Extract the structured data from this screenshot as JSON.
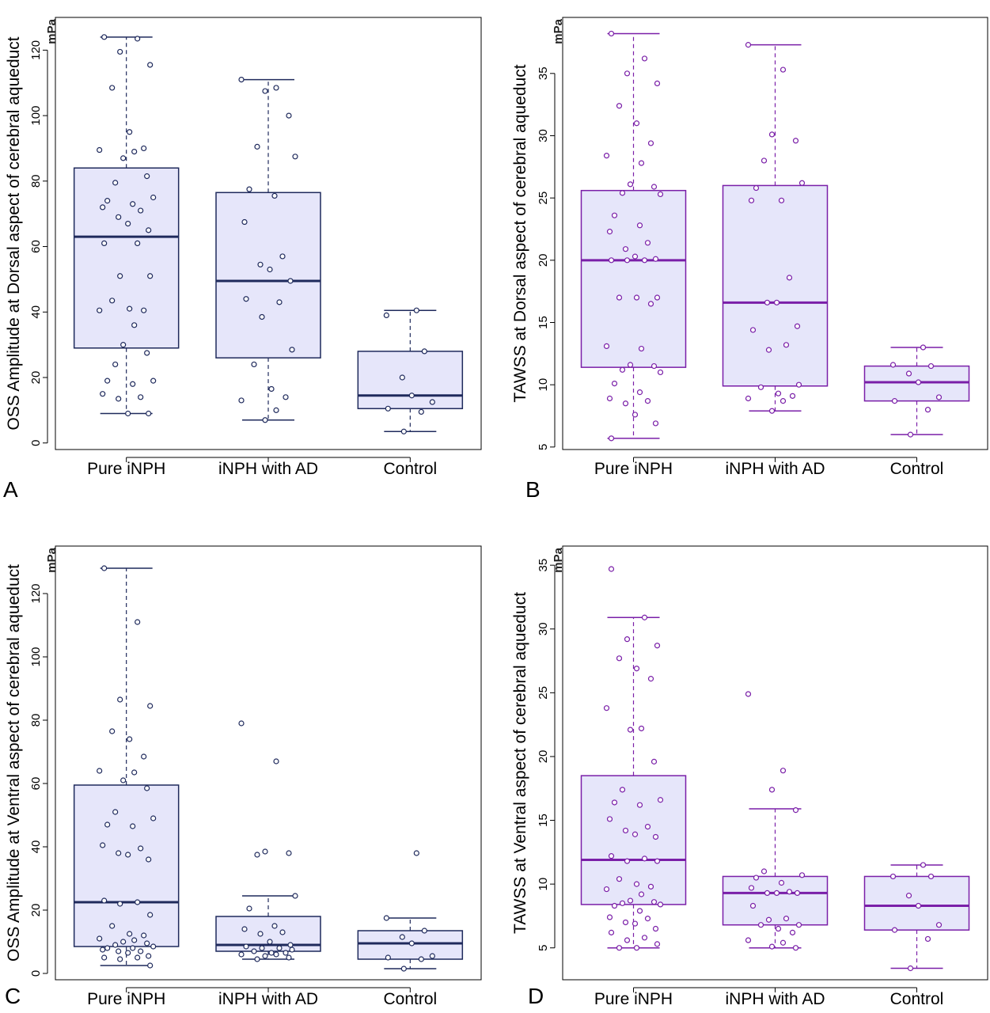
{
  "chart_data": [
    {
      "panel": "A",
      "type": "box",
      "color": "#1f2a5c",
      "box_fill": "#e6e6fa",
      "ylabel": "OSS Amplitude at Dorsal aspect of cerebral aqueduct",
      "unit": "mPa",
      "ylim": [
        -2,
        130
      ],
      "yticks": [
        0,
        20,
        40,
        60,
        80,
        100,
        120
      ],
      "categories": [
        "Pure iNPH",
        "iNPH with AD",
        "Control"
      ],
      "boxes": [
        {
          "min": 9,
          "q1": 29,
          "median": 63,
          "q3": 84,
          "max": 124
        },
        {
          "min": 7,
          "q1": 26,
          "median": 49.5,
          "q3": 76.5,
          "max": 111
        },
        {
          "min": 3.5,
          "q1": 10.5,
          "median": 14.5,
          "q3": 28,
          "max": 40.5
        }
      ],
      "points": [
        [
          124,
          123.5,
          119.5,
          115.5,
          108.5,
          95,
          90,
          89.5,
          89,
          87,
          81.5,
          79.5,
          75,
          74,
          73,
          72,
          71,
          69,
          67,
          65,
          61,
          61,
          51,
          51,
          43.5,
          41,
          40.5,
          40.5,
          36,
          30,
          27.5,
          24,
          19,
          19,
          18,
          15,
          14,
          13.5,
          9,
          9
        ],
        [
          111,
          108.5,
          107.5,
          100,
          90.5,
          87.5,
          77.5,
          75.5,
          67.5,
          57,
          54.5,
          53,
          49.5,
          44,
          43,
          38.5,
          28.5,
          24,
          16.5,
          14,
          13,
          10,
          7
        ],
        [
          40.5,
          39,
          28,
          20,
          14.5,
          12.5,
          10.5,
          9.5,
          3.5
        ]
      ]
    },
    {
      "panel": "B",
      "type": "box",
      "color": "#7a1fa8",
      "box_fill": "#e6e6fa",
      "ylabel": "TAWSS at Dorsal aspect of cerebral aqueduct",
      "unit": "mPa",
      "ylim": [
        4.8,
        39.5
      ],
      "yticks": [
        5,
        10,
        15,
        20,
        25,
        30,
        35
      ],
      "categories": [
        "Pure iNPH",
        "iNPH with AD",
        "Control"
      ],
      "boxes": [
        {
          "min": 5.7,
          "q1": 11.4,
          "median": 20,
          "q3": 25.6,
          "max": 38.2
        },
        {
          "min": 7.9,
          "q1": 9.9,
          "median": 16.6,
          "q3": 26,
          "max": 37.3
        },
        {
          "min": 6,
          "q1": 8.7,
          "median": 10.2,
          "q3": 11.5,
          "max": 13
        }
      ],
      "points": [
        [
          38.2,
          36.2,
          35,
          34.2,
          32.4,
          31,
          29.4,
          28.4,
          27.8,
          26.1,
          25.9,
          25.4,
          25.3,
          23.6,
          22.8,
          22.3,
          21.4,
          20.9,
          20.3,
          20.1,
          20,
          20,
          20,
          17,
          17,
          17,
          16.5,
          13.1,
          12.9,
          11.6,
          11.5,
          11.2,
          11,
          10.1,
          9.4,
          8.9,
          8.7,
          8.5,
          7.6,
          6.9,
          5.7
        ],
        [
          37.3,
          35.3,
          30.1,
          29.6,
          28,
          26.2,
          25.8,
          24.8,
          24.8,
          18.6,
          16.6,
          16.6,
          14.7,
          14.4,
          13.2,
          12.8,
          10,
          9.8,
          9.3,
          9.1,
          8.9,
          8.7,
          7.9
        ],
        [
          13,
          11.6,
          11.5,
          10.9,
          10.2,
          9,
          8.7,
          8,
          6
        ]
      ]
    },
    {
      "panel": "C",
      "type": "box",
      "color": "#1f2a5c",
      "box_fill": "#e6e6fa",
      "ylabel": "OSS Amplitude at Ventral aspect of cerebral aqueduct",
      "unit": "mPa",
      "ylim": [
        -2,
        135
      ],
      "yticks": [
        0,
        20,
        40,
        60,
        80,
        100,
        120
      ],
      "categories": [
        "Pure iNPH",
        "iNPH with AD",
        "Control"
      ],
      "boxes": [
        {
          "min": 2.5,
          "q1": 8.5,
          "median": 22.5,
          "q3": 59.5,
          "max": 128
        },
        {
          "min": 4.5,
          "q1": 7,
          "median": 9,
          "q3": 18,
          "max": 24.5
        },
        {
          "min": 1.5,
          "q1": 4.5,
          "median": 9.5,
          "q3": 13.5,
          "max": 17.5
        }
      ],
      "points": [
        [
          128,
          111,
          86.5,
          84.5,
          76.5,
          74,
          68.5,
          64,
          63.5,
          61,
          58.5,
          51,
          49,
          47,
          46.5,
          40.5,
          39.5,
          38,
          37.5,
          36,
          23,
          22.5,
          22,
          18.5,
          15,
          12.5,
          12,
          11,
          10.5,
          10,
          9.5,
          9,
          8.5,
          8,
          8,
          7.5,
          7,
          7,
          6.5,
          5.5,
          5,
          5,
          4.5,
          2.5
        ],
        [
          79,
          67,
          38.5,
          38,
          37.5,
          24.5,
          20.5,
          15,
          14,
          13,
          12.5,
          10,
          9,
          8.5,
          8,
          8,
          7.5,
          7,
          6.5,
          6.5,
          6,
          6,
          5.5,
          5,
          4.5
        ],
        [
          38,
          17.5,
          13.5,
          11.5,
          9.5,
          5.5,
          5,
          4.5,
          1.5
        ]
      ]
    },
    {
      "panel": "D",
      "type": "box",
      "color": "#7a1fa8",
      "box_fill": "#e6e6fa",
      "ylabel": "TAWSS at Ventral aspect of cerebral aqueduct",
      "unit": "mPa",
      "ylim": [
        2.5,
        36.5
      ],
      "yticks": [
        5,
        10,
        15,
        20,
        25,
        30,
        35
      ],
      "categories": [
        "Pure iNPH",
        "iNPH with AD",
        "Control"
      ],
      "boxes": [
        {
          "min": 5,
          "q1": 8.4,
          "median": 11.9,
          "q3": 18.5,
          "max": 30.9
        },
        {
          "min": 5,
          "q1": 6.8,
          "median": 9.3,
          "q3": 10.6,
          "max": 15.9
        },
        {
          "min": 3.4,
          "q1": 6.4,
          "median": 8.3,
          "q3": 10.6,
          "max": 11.5
        }
      ],
      "points": [
        [
          34.7,
          30.9,
          29.2,
          28.7,
          27.7,
          26.9,
          26.1,
          23.8,
          22.2,
          22.1,
          19.6,
          17.4,
          16.6,
          16.4,
          16.2,
          15.1,
          14.5,
          14.2,
          13.9,
          13.7,
          12.2,
          12,
          11.8,
          11.8,
          10.4,
          10,
          9.8,
          9.6,
          9.2,
          8.7,
          8.6,
          8.5,
          8.4,
          8.3,
          7.9,
          7.4,
          7.3,
          7,
          6.9,
          6.5,
          6.2,
          5.8,
          5.6,
          5.3,
          5,
          5
        ],
        [
          24.9,
          18.9,
          17.4,
          15.8,
          11,
          10.7,
          10.5,
          10.1,
          9.7,
          9.4,
          9.3,
          9.3,
          9.3,
          8.3,
          7.3,
          7.2,
          6.8,
          6.8,
          6.5,
          6.2,
          5.6,
          5.4,
          5.1,
          5
        ],
        [
          11.5,
          10.6,
          10.6,
          9.1,
          8.3,
          6.8,
          6.4,
          5.7,
          3.4
        ]
      ]
    }
  ],
  "panel_letters": [
    "A",
    "B",
    "C",
    "D"
  ]
}
